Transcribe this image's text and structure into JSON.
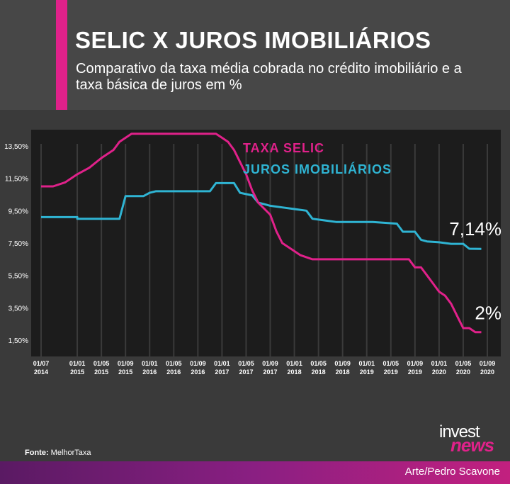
{
  "header": {
    "title": "SELIC X JUROS IMOBILIÁRIOS",
    "subtitle": "Comparativo da taxa média cobrada no crédito imobiliário e a taxa básica de juros em %"
  },
  "colors": {
    "accent": "#e0218a",
    "selic": "#e0218a",
    "imob": "#2fb4d3",
    "plot_bg": "#1c1c1c"
  },
  "chart_data": {
    "type": "line",
    "legend": [
      "TAXA SELIC",
      "JUROS IMOBILIÁRIOS"
    ],
    "ylim": [
      0.5,
      14.5
    ],
    "yticks": [
      "13,50%",
      "11,50%",
      "9,50%",
      "7,50%",
      "5,50%",
      "3,50%",
      "1,50%"
    ],
    "ytick_values": [
      13.5,
      11.5,
      9.5,
      7.5,
      5.5,
      3.5,
      1.5
    ],
    "xticks": [
      {
        "t": 0,
        "line1": "01/07",
        "line2": "2014"
      },
      {
        "t": 6,
        "line1": "01/01",
        "line2": "2015"
      },
      {
        "t": 10,
        "line1": "01/05",
        "line2": "2015"
      },
      {
        "t": 14,
        "line1": "01/09",
        "line2": "2015"
      },
      {
        "t": 18,
        "line1": "01/01",
        "line2": "2016"
      },
      {
        "t": 22,
        "line1": "01/05",
        "line2": "2016"
      },
      {
        "t": 26,
        "line1": "01/09",
        "line2": "2016"
      },
      {
        "t": 30,
        "line1": "01/01",
        "line2": "2017"
      },
      {
        "t": 34,
        "line1": "01/05",
        "line2": "2017"
      },
      {
        "t": 38,
        "line1": "01/09",
        "line2": "2017"
      },
      {
        "t": 42,
        "line1": "01/01",
        "line2": "2018"
      },
      {
        "t": 46,
        "line1": "01/05",
        "line2": "2018"
      },
      {
        "t": 50,
        "line1": "01/09",
        "line2": "2018"
      },
      {
        "t": 54,
        "line1": "01/01",
        "line2": "2019"
      },
      {
        "t": 58,
        "line1": "01/05",
        "line2": "2019"
      },
      {
        "t": 62,
        "line1": "01/09",
        "line2": "2019"
      },
      {
        "t": 66,
        "line1": "01/01",
        "line2": "2020"
      },
      {
        "t": 70,
        "line1": "01/05",
        "line2": "2020"
      },
      {
        "t": 74,
        "line1": "01/09",
        "line2": "2020"
      }
    ],
    "series": [
      {
        "name": "TAXA SELIC",
        "points": [
          [
            0,
            11
          ],
          [
            2,
            11
          ],
          [
            4,
            11.25
          ],
          [
            6,
            11.75
          ],
          [
            8,
            12.15
          ],
          [
            10,
            12.75
          ],
          [
            12,
            13.25
          ],
          [
            13,
            13.75
          ],
          [
            15,
            14.25
          ],
          [
            29,
            14.25
          ],
          [
            30,
            14
          ],
          [
            31,
            13.75
          ],
          [
            32,
            13.25
          ],
          [
            33,
            12.5
          ],
          [
            34,
            11.75
          ],
          [
            35,
            10.75
          ],
          [
            36,
            10
          ],
          [
            38,
            9.25
          ],
          [
            39,
            8.25
          ],
          [
            40,
            7.5
          ],
          [
            42,
            7
          ],
          [
            43,
            6.75
          ],
          [
            45,
            6.5
          ],
          [
            46,
            6.5
          ],
          [
            61,
            6.5
          ],
          [
            62,
            6
          ],
          [
            63,
            6
          ],
          [
            64,
            5.5
          ],
          [
            65,
            5
          ],
          [
            66,
            4.5
          ],
          [
            67,
            4.25
          ],
          [
            68,
            3.75
          ],
          [
            69,
            3
          ],
          [
            70,
            2.25
          ],
          [
            71,
            2.25
          ],
          [
            72,
            2
          ],
          [
            73,
            2
          ]
        ]
      },
      {
        "name": "JUROS IMOBILIÁRIOS",
        "points": [
          [
            0,
            9.1
          ],
          [
            6,
            9.1
          ],
          [
            6,
            9.0
          ],
          [
            13,
            9.0
          ],
          [
            14,
            10.4
          ],
          [
            17,
            10.4
          ],
          [
            18,
            10.6
          ],
          [
            19,
            10.7
          ],
          [
            28,
            10.7
          ],
          [
            29,
            11.2
          ],
          [
            32,
            11.2
          ],
          [
            33,
            10.6
          ],
          [
            35,
            10.45
          ],
          [
            36,
            10.0
          ],
          [
            37,
            9.9
          ],
          [
            38,
            9.8
          ],
          [
            40,
            9.7
          ],
          [
            42,
            9.6
          ],
          [
            44,
            9.5
          ],
          [
            45,
            9.0
          ],
          [
            47,
            8.9
          ],
          [
            49,
            8.8
          ],
          [
            55,
            8.8
          ],
          [
            59,
            8.7
          ],
          [
            60,
            8.2
          ],
          [
            62,
            8.2
          ],
          [
            63,
            7.7
          ],
          [
            64,
            7.6
          ],
          [
            66,
            7.55
          ],
          [
            67,
            7.5
          ],
          [
            68,
            7.45
          ],
          [
            70,
            7.45
          ],
          [
            71,
            7.15
          ],
          [
            73,
            7.14
          ]
        ]
      }
    ],
    "annotations": [
      {
        "series": "JUROS IMOBILIÁRIOS",
        "label": "7,14%"
      },
      {
        "series": "TAXA SELIC",
        "label": "2%"
      }
    ]
  },
  "footer": {
    "source_label": "Fonte:",
    "source_value": "MelhorTaxa",
    "credit": "Arte/Pedro Scavone",
    "logo_top": "invest",
    "logo_bottom": "news"
  }
}
